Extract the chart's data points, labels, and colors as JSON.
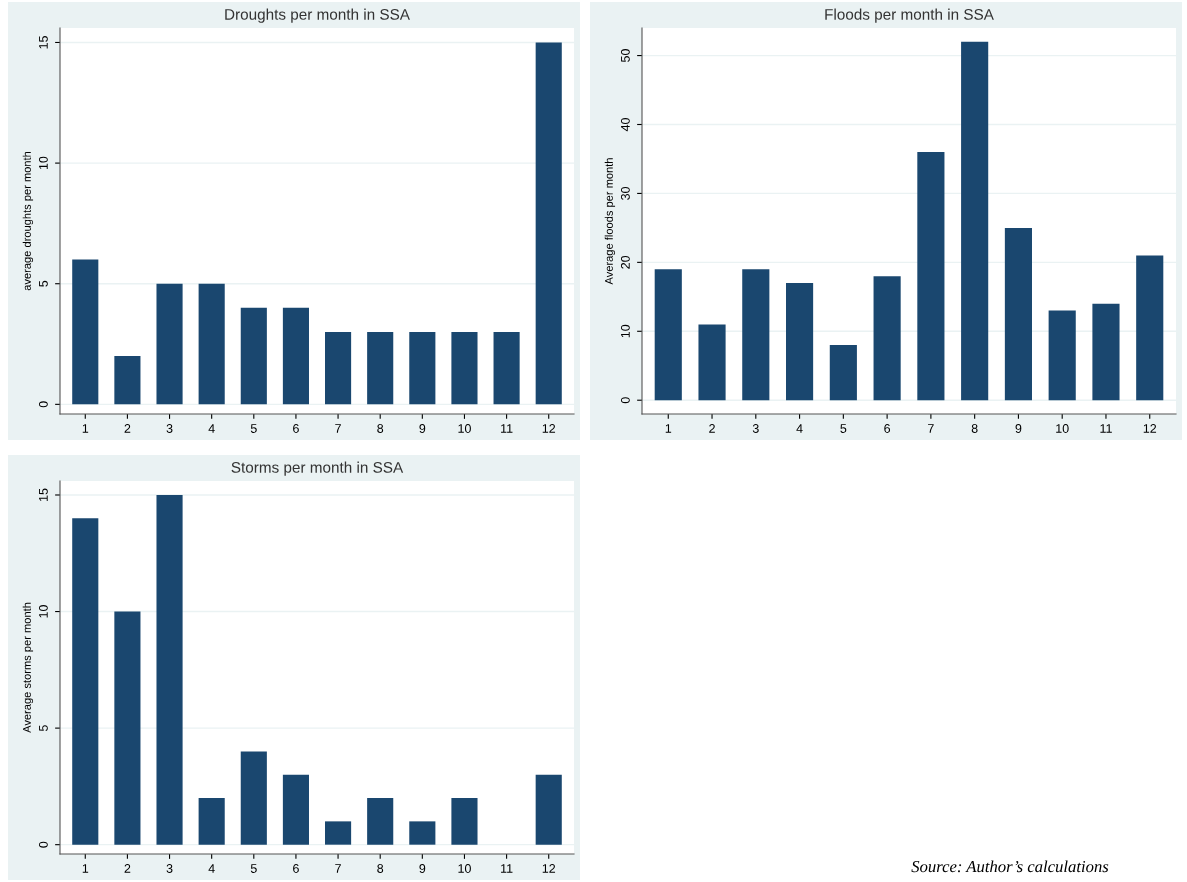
{
  "chart_data": [
    {
      "type": "bar",
      "title": "Droughts per month in SSA",
      "ylabel": "average droughts per month",
      "categories": [
        "1",
        "2",
        "3",
        "4",
        "5",
        "6",
        "7",
        "8",
        "9",
        "10",
        "11",
        "12"
      ],
      "values": [
        6,
        2,
        5,
        5,
        4,
        4,
        3,
        3,
        3,
        3,
        3,
        15
      ],
      "color": "#1a476f",
      "ylim": [
        -0.4,
        15.6
      ],
      "yticks": [
        0,
        5,
        10,
        15
      ],
      "grid": "y"
    },
    {
      "type": "bar",
      "title": "Floods per month in SSA",
      "ylabel": "Average floods per month",
      "categories": [
        "1",
        "2",
        "3",
        "4",
        "5",
        "6",
        "7",
        "8",
        "9",
        "10",
        "11",
        "12"
      ],
      "values": [
        19,
        11,
        19,
        17,
        8,
        18,
        36,
        52,
        25,
        13,
        14,
        21
      ],
      "color": "#1a476f",
      "ylim": [
        -2,
        54
      ],
      "yticks": [
        0,
        10,
        20,
        30,
        40,
        50
      ],
      "grid": "y"
    },
    {
      "type": "bar",
      "title": "Storms per month in SSA",
      "ylabel": "Average storms per month",
      "categories": [
        "1",
        "2",
        "3",
        "4",
        "5",
        "6",
        "7",
        "8",
        "9",
        "10",
        "11",
        "12"
      ],
      "values": [
        14,
        10,
        15,
        2,
        4,
        3,
        1,
        2,
        1,
        2,
        0,
        3
      ],
      "color": "#1a476f",
      "ylim": [
        -0.4,
        15.6
      ],
      "yticks": [
        0,
        5,
        10,
        15
      ],
      "grid": "y",
      "annotations": [
        "Source: Author’s calculations"
      ]
    }
  ]
}
